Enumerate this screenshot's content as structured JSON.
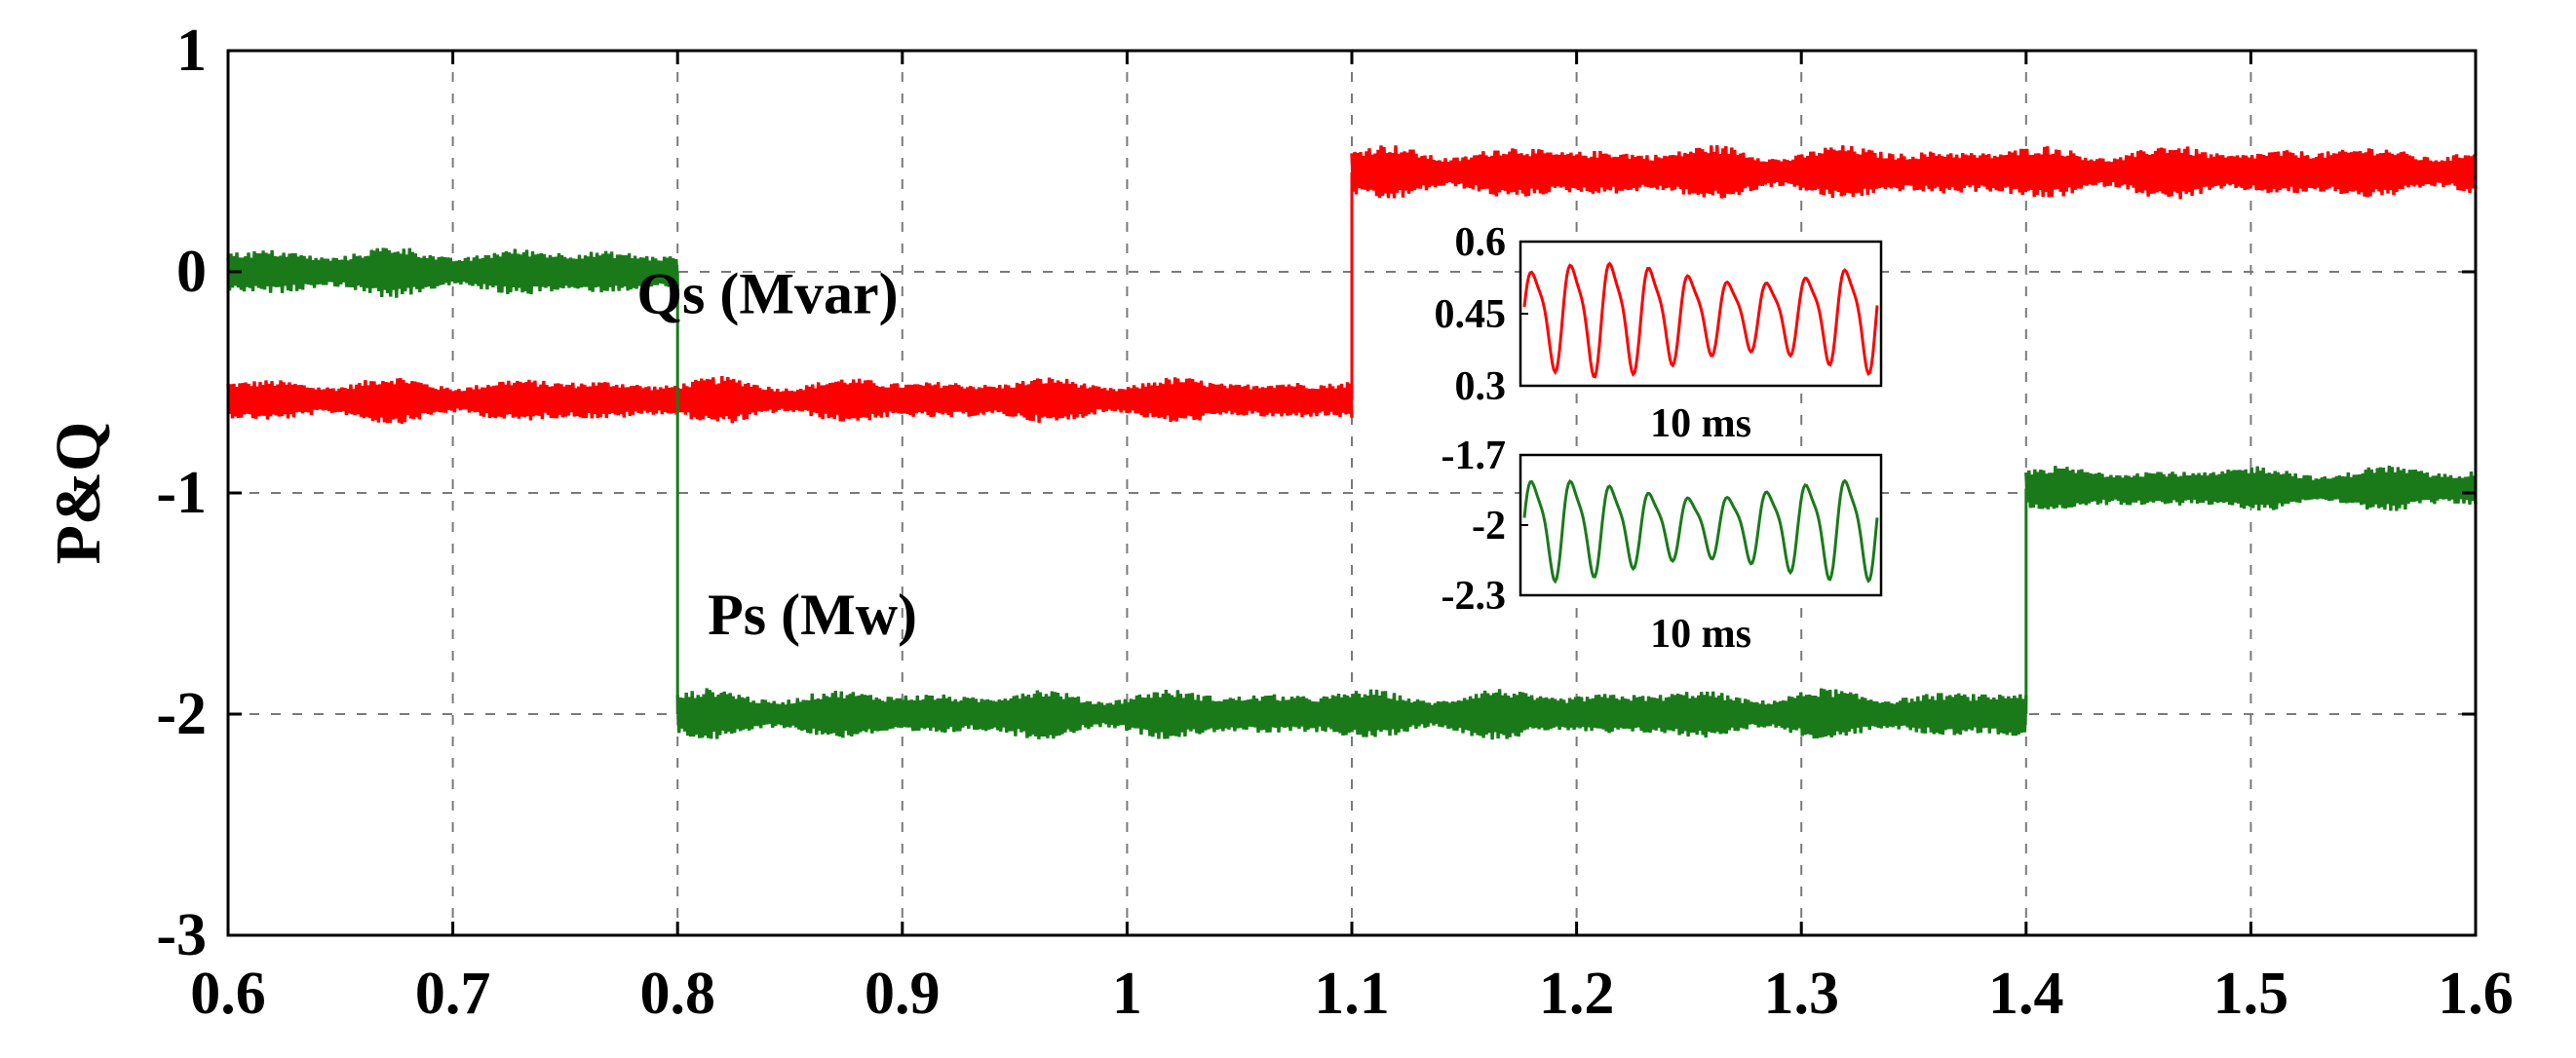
{
  "chart_data": {
    "type": "line",
    "title": "",
    "xlabel": "",
    "ylabel": "P&Q",
    "xlim": [
      0.6,
      1.6
    ],
    "ylim": [
      -3,
      1
    ],
    "xticks": [
      "0.6",
      "0.7",
      "0.8",
      "0.9",
      "1",
      "1.1",
      "1.2",
      "1.3",
      "1.4",
      "1.5",
      "1.6"
    ],
    "yticks": [
      "1",
      "0",
      "-1",
      "-2",
      "-3"
    ],
    "grid": true,
    "colors": {
      "Qs": "#ff0000",
      "Ps": "#1a7a1a"
    },
    "series": [
      {
        "key": "Qs",
        "segments": [
          {
            "x": [
              0.6,
              1.1
            ],
            "y": -0.58,
            "ripple": 0.11
          },
          {
            "x": [
              1.1,
              1.6
            ],
            "y": 0.45,
            "ripple": 0.13
          }
        ]
      },
      {
        "key": "Ps",
        "segments": [
          {
            "x": [
              0.6,
              0.8
            ],
            "y": 0.0,
            "ripple": 0.12
          },
          {
            "x": [
              0.8,
              1.4
            ],
            "y": -2.0,
            "ripple": 0.12
          },
          {
            "x": [
              1.4,
              1.6
            ],
            "y": -0.98,
            "ripple": 0.11
          }
        ]
      }
    ],
    "annotations": [
      {
        "text": "Qs (Mvar)",
        "x": 0.84,
        "y": -0.1
      },
      {
        "text": "Ps (Mw)",
        "x": 0.86,
        "y": -1.55
      }
    ],
    "insets": [
      {
        "key": "Qs",
        "yticks": [
          "0.6",
          "0.45",
          "0.3"
        ],
        "ylim": [
          0.3,
          0.6
        ],
        "mean": 0.45,
        "amp": 0.11,
        "cycles": 9,
        "xlabel": "10 ms"
      },
      {
        "key": "Ps",
        "yticks": [
          "-1.7",
          "-2",
          "-2.3"
        ],
        "ylim": [
          -2.3,
          -1.7
        ],
        "mean": -2.0,
        "amp": 0.2,
        "cycles": 9,
        "xlabel": "10 ms"
      }
    ]
  }
}
